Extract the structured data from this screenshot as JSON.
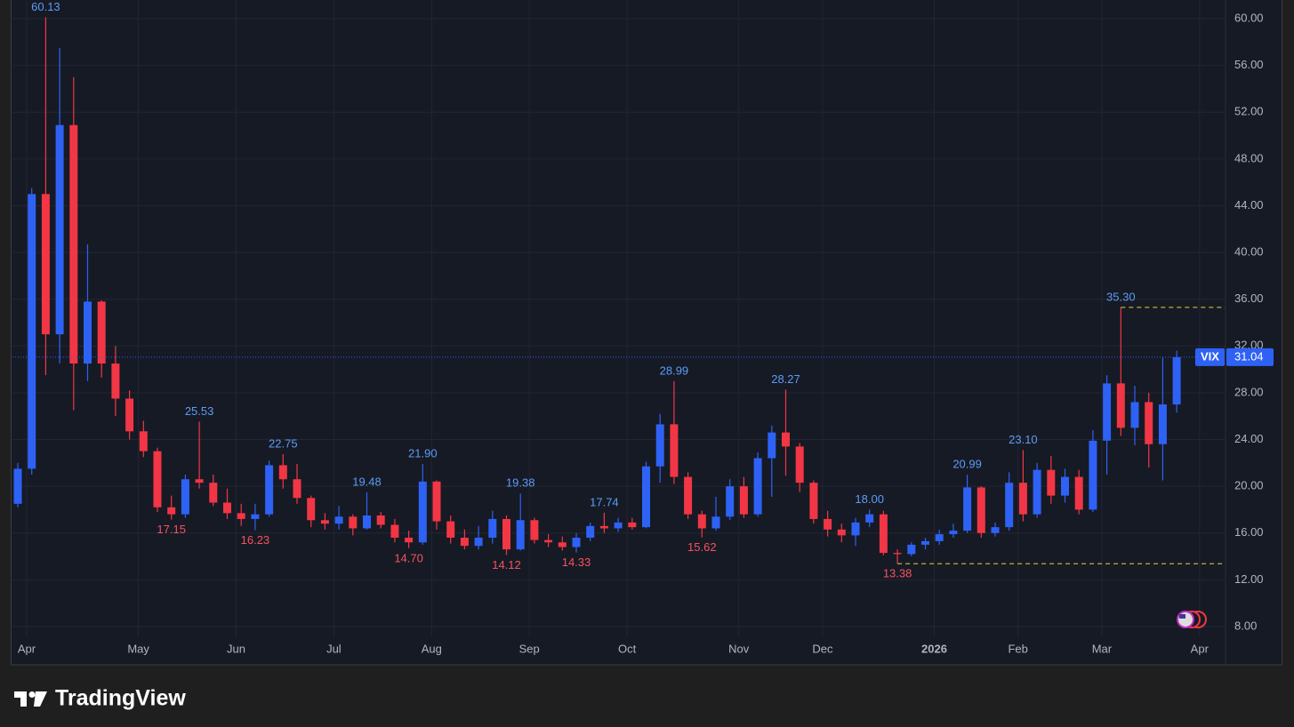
{
  "branding": "TradingView",
  "chart_data": {
    "type": "candlestick",
    "symbol": "VIX",
    "categories": [
      "Apr",
      null,
      null,
      null,
      null,
      null,
      null,
      null,
      "May",
      null,
      null,
      null,
      null,
      null,
      null,
      "Jun",
      null,
      null,
      null,
      null,
      null,
      null,
      "Jul",
      null,
      null,
      null,
      null,
      null,
      null,
      "Aug",
      null,
      null,
      null,
      null,
      null,
      null,
      "Sep",
      null,
      null,
      null,
      null,
      null,
      null,
      "Oct",
      null,
      null,
      null,
      null,
      null,
      null,
      null,
      "Nov",
      null,
      null,
      null,
      null,
      null,
      "Dec",
      null,
      null,
      null,
      null,
      null,
      null,
      null,
      "2026",
      null,
      null,
      null,
      null,
      null,
      "Feb",
      null,
      null,
      null,
      null,
      null,
      "Mar",
      null,
      null,
      null,
      null,
      null,
      null,
      "Apr"
    ],
    "series": [
      {
        "name": "VIX",
        "up_color": "#2e62f5",
        "down_color": "#f23645",
        "open": [
          18.5,
          21.5,
          45,
          33,
          50.9,
          30.5,
          35.8,
          30.5,
          27.5,
          24.7,
          23,
          18.2,
          17.6,
          20.6,
          20.3,
          18.6,
          17.7,
          17.2,
          17.6,
          21.8,
          20.6,
          19.0,
          17.1,
          16.8,
          17.4,
          16.4,
          17.5,
          16.7,
          15.6,
          15.2,
          20.4,
          17.0,
          15.6,
          14.9,
          15.6,
          17.2,
          14.6,
          17.1,
          15.4,
          15.2,
          14.8,
          15.6,
          16.6,
          16.4,
          16.9,
          16.5,
          21.7,
          25.3,
          20.8,
          17.6,
          16.4,
          17.4,
          20.0,
          17.6,
          22.4,
          24.6,
          23.4,
          20.3,
          17.2,
          16.3,
          15.8,
          16.9,
          17.6,
          14.3,
          14.2,
          15.0,
          15.3,
          15.9,
          16.2,
          19.9,
          16.0,
          16.5,
          20.3,
          17.6,
          21.4,
          19.2,
          20.8,
          18.0,
          23.9,
          28.8,
          25.0,
          27.2,
          23.6,
          27.0,
          null
        ],
        "high": [
          22,
          45.5,
          60.13,
          57.5,
          55,
          40.7,
          35.9,
          32,
          28.2,
          25.6,
          23.3,
          19.2,
          21,
          25.53,
          21,
          19.8,
          18.5,
          18.5,
          22.2,
          22.75,
          21.9,
          19.2,
          17.7,
          18.3,
          17.6,
          19.48,
          17.8,
          17.2,
          16.2,
          21.9,
          20.5,
          17.5,
          16.3,
          16.6,
          17.9,
          17.5,
          19.38,
          17.3,
          15.9,
          15.7,
          16.0,
          16.9,
          17.74,
          17.3,
          17.3,
          22.1,
          26.2,
          28.99,
          21.2,
          17.9,
          19.1,
          20.6,
          20.8,
          22.9,
          25.2,
          28.27,
          23.7,
          20.5,
          17.9,
          16.8,
          17.3,
          18.0,
          17.9,
          14.6,
          15.2,
          15.6,
          16.3,
          16.8,
          20.99,
          20.0,
          16.9,
          21.2,
          23.1,
          22.0,
          22.6,
          21.5,
          21.4,
          24.8,
          29.5,
          35.3,
          28.6,
          28.0,
          31.0,
          31.6,
          null
        ],
        "low": [
          18.2,
          21,
          29.5,
          30.5,
          26.5,
          29,
          29.3,
          26,
          24,
          22.5,
          17.8,
          17.15,
          17.3,
          19.8,
          18.3,
          17.2,
          16.6,
          16.23,
          17.4,
          19.8,
          18.5,
          16.5,
          16.3,
          16.3,
          15.8,
          16.3,
          16.4,
          15.2,
          14.7,
          15,
          16.3,
          15.1,
          14.6,
          14.6,
          15.1,
          14.12,
          14.5,
          15.1,
          14.8,
          14.5,
          14.33,
          15.3,
          16.0,
          16.1,
          16.3,
          16.4,
          20.3,
          20.2,
          17.2,
          15.62,
          16.2,
          17.1,
          17.3,
          17.4,
          19.1,
          20.9,
          19.5,
          16.8,
          15.7,
          15.2,
          14.9,
          16.5,
          14.1,
          13.38,
          14.0,
          14.6,
          15.0,
          15.6,
          16.0,
          15.6,
          15.7,
          16.2,
          17.0,
          17.3,
          18.5,
          18.6,
          17.6,
          17.8,
          21.0,
          24.3,
          23.5,
          21.6,
          20.5,
          26.3,
          null
        ],
        "close": [
          21.5,
          45,
          33,
          50.9,
          30.5,
          35.8,
          30.5,
          27.5,
          24.7,
          23,
          18.2,
          17.6,
          20.6,
          20.3,
          18.6,
          17.7,
          17.2,
          17.6,
          21.8,
          20.6,
          19.0,
          17.1,
          16.8,
          17.4,
          16.4,
          17.5,
          16.7,
          15.6,
          15.2,
          20.4,
          17.0,
          15.6,
          14.9,
          15.6,
          17.2,
          14.6,
          17.1,
          15.4,
          15.2,
          14.8,
          15.6,
          16.6,
          16.4,
          16.9,
          16.5,
          21.7,
          25.3,
          20.8,
          17.6,
          16.4,
          17.4,
          20.0,
          17.6,
          22.4,
          24.6,
          23.4,
          20.3,
          17.2,
          16.3,
          15.8,
          16.9,
          17.6,
          14.3,
          14.2,
          15.0,
          15.3,
          15.9,
          16.2,
          19.9,
          16.0,
          16.5,
          20.3,
          17.6,
          21.4,
          19.2,
          20.8,
          18.0,
          23.9,
          28.8,
          25.0,
          27.2,
          23.6,
          27.0,
          31.04,
          null
        ],
        "high_labels": [
          null,
          null,
          "60.13",
          null,
          null,
          null,
          null,
          null,
          null,
          null,
          null,
          null,
          null,
          "25.53",
          null,
          null,
          null,
          null,
          null,
          "22.75",
          null,
          null,
          null,
          null,
          null,
          "19.48",
          null,
          null,
          null,
          "21.90",
          null,
          null,
          null,
          null,
          null,
          null,
          "19.38",
          null,
          null,
          null,
          null,
          null,
          "17.74",
          null,
          null,
          null,
          null,
          "28.99",
          null,
          null,
          null,
          null,
          null,
          null,
          null,
          "28.27",
          null,
          null,
          null,
          null,
          null,
          "18.00",
          null,
          null,
          null,
          null,
          null,
          null,
          "20.99",
          null,
          null,
          null,
          "23.10",
          null,
          null,
          null,
          null,
          null,
          null,
          "35.30",
          null,
          null,
          null,
          null,
          null
        ],
        "low_labels": [
          null,
          null,
          null,
          null,
          null,
          null,
          null,
          null,
          null,
          null,
          null,
          "17.15",
          null,
          null,
          null,
          null,
          null,
          "16.23",
          null,
          null,
          null,
          null,
          null,
          null,
          null,
          null,
          null,
          null,
          "14.70",
          null,
          null,
          null,
          null,
          null,
          null,
          "14.12",
          null,
          null,
          null,
          null,
          "14.33",
          null,
          null,
          null,
          null,
          null,
          null,
          null,
          null,
          "15.62",
          null,
          null,
          null,
          null,
          null,
          null,
          null,
          null,
          null,
          null,
          null,
          null,
          null,
          "13.38",
          null,
          null,
          null,
          null,
          null,
          null,
          null,
          null,
          null,
          null,
          null,
          null,
          null,
          null,
          null,
          null,
          null,
          null,
          null,
          null,
          null,
          null
        ]
      }
    ],
    "ylim": [
      7.16,
      61.6
    ],
    "yticks": [
      {
        "value": 8,
        "label": "8.00"
      },
      {
        "value": 12,
        "label": "12.00"
      },
      {
        "value": 16,
        "label": "16.00"
      },
      {
        "value": 20,
        "label": "20.00"
      },
      {
        "value": 24,
        "label": "24.00"
      },
      {
        "value": 28,
        "label": "28.00"
      },
      {
        "value": 32,
        "label": "32.00"
      },
      {
        "value": 36,
        "label": "36.00"
      },
      {
        "value": 40,
        "label": "40.00"
      },
      {
        "value": 44,
        "label": "44.00"
      },
      {
        "value": 48,
        "label": "48.00"
      },
      {
        "value": 52,
        "label": "52.00"
      },
      {
        "value": 56,
        "label": "56.00"
      },
      {
        "value": 60,
        "label": "60.00"
      }
    ],
    "grid": true
  }
}
